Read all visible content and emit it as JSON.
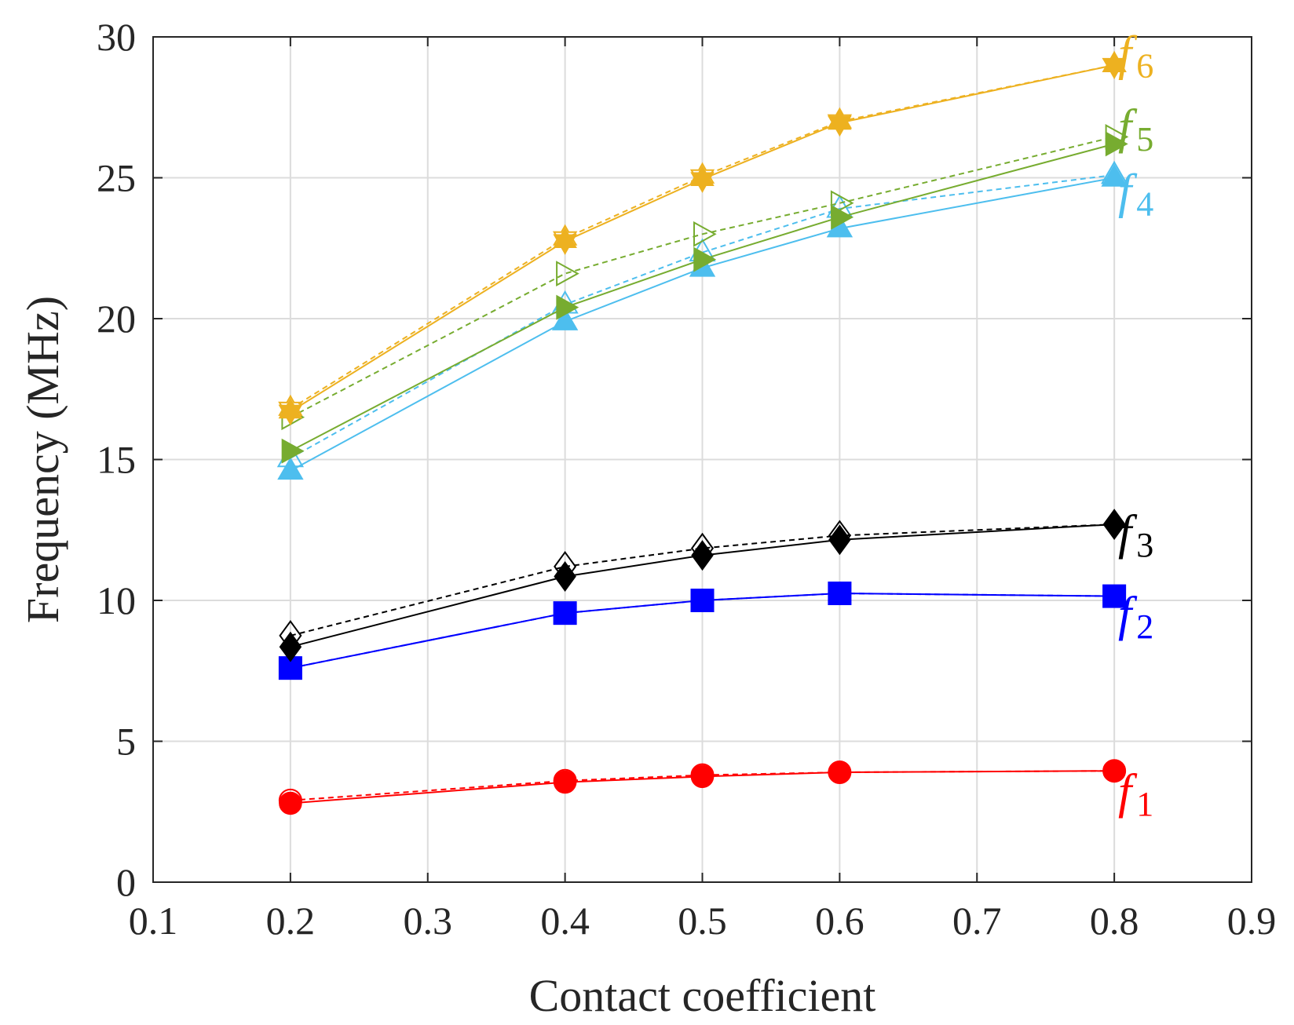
{
  "chart_data": {
    "type": "line",
    "title": "",
    "xlabel": "Contact coefficient",
    "ylabel": "Frequency (MHz)",
    "xlim": [
      0.1,
      0.9
    ],
    "ylim": [
      0,
      30
    ],
    "xticks": [
      "0.1",
      "0.2",
      "0.3",
      "0.4",
      "0.5",
      "0.6",
      "0.7",
      "0.8",
      "0.9"
    ],
    "yticks": [
      "0",
      "5",
      "10",
      "15",
      "20",
      "25",
      "30"
    ],
    "grid": true,
    "x": [
      0.2,
      0.4,
      0.5,
      0.6,
      0.8
    ],
    "series": [
      {
        "name": "f1",
        "letter": "f",
        "subscript": "1",
        "color": "#ff0000",
        "marker": "circle",
        "solid": [
          2.8,
          3.55,
          3.75,
          3.9,
          3.95
        ],
        "dashed": [
          2.9,
          3.6,
          3.8,
          3.9,
          3.95
        ]
      },
      {
        "name": "f2",
        "letter": "f",
        "subscript": "2",
        "color": "#0000ff",
        "marker": "square",
        "solid": [
          7.6,
          9.55,
          10.0,
          10.25,
          10.15
        ],
        "dashed": [
          7.6,
          9.55,
          10.0,
          10.25,
          10.15
        ]
      },
      {
        "name": "f3",
        "letter": "f",
        "subscript": "3",
        "color": "#000000",
        "marker": "diamond",
        "solid": [
          8.35,
          10.85,
          11.6,
          12.15,
          12.7
        ],
        "dashed": [
          8.75,
          11.2,
          11.85,
          12.3,
          12.7
        ]
      },
      {
        "name": "f4",
        "letter": "f",
        "subscript": "4",
        "color": "#4dbeee",
        "marker": "triangle-up",
        "solid": [
          14.6,
          19.9,
          21.8,
          23.2,
          25.0
        ],
        "dashed": [
          15.05,
          20.5,
          22.35,
          23.9,
          25.1
        ]
      },
      {
        "name": "f5",
        "letter": "f",
        "subscript": "5",
        "color": "#77ac30",
        "marker": "triangle-right",
        "solid": [
          15.3,
          20.4,
          22.1,
          23.6,
          26.2
        ],
        "dashed": [
          16.5,
          21.6,
          23.0,
          24.1,
          26.45
        ]
      },
      {
        "name": "f6",
        "letter": "f",
        "subscript": "6",
        "color": "#edb120",
        "marker": "hexagram",
        "solid": [
          16.7,
          22.75,
          24.95,
          26.95,
          29.0
        ],
        "dashed": [
          16.8,
          22.85,
          25.05,
          27.0,
          29.0
        ]
      }
    ]
  }
}
